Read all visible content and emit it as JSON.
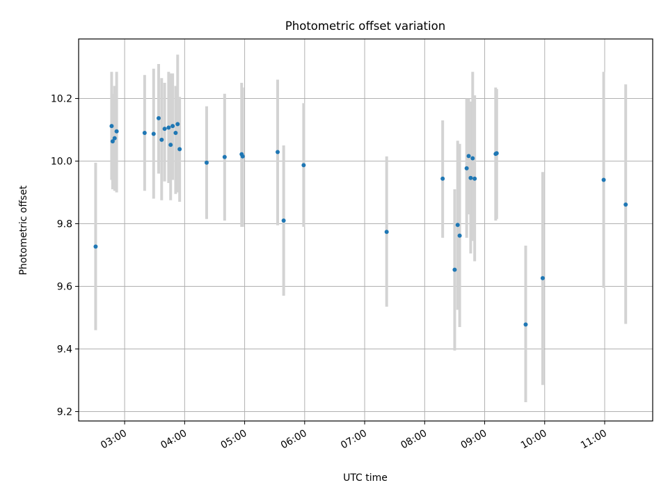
{
  "chart_data": {
    "type": "scatter",
    "title": "Photometric offset variation",
    "xlabel": "UTC time",
    "ylabel": "Photometric offset",
    "x_unit": "UTC time (HH:MM)",
    "xlim": [
      "02:14",
      "11:48"
    ],
    "ylim": [
      9.17,
      10.39
    ],
    "x_ticks": [
      "03:00",
      "04:00",
      "05:00",
      "06:00",
      "07:00",
      "08:00",
      "09:00",
      "10:00",
      "11:00"
    ],
    "y_ticks": [
      9.2,
      9.4,
      9.6,
      9.8,
      10.0,
      10.2
    ],
    "y_tick_labels": [
      "9.2",
      "9.4",
      "9.6",
      "9.8",
      "10.0",
      "10.2"
    ],
    "grid": true,
    "x_tick_rotation": "30 degrees, right-aligned",
    "colors": {
      "points": "#1f77b4",
      "error_bars": "#d3d3d3",
      "grid": "#b0b0b0"
    },
    "series": [
      {
        "points": [
          {
            "x": "02:31",
            "y": 9.727,
            "ylo": 9.46,
            "yhi": 9.995
          },
          {
            "x": "02:47",
            "y": 10.112,
            "ylo": 9.94,
            "yhi": 10.285
          },
          {
            "x": "02:48",
            "y": 10.063,
            "ylo": 9.91,
            "yhi": 10.215
          },
          {
            "x": "02:50",
            "y": 10.073,
            "ylo": 9.905,
            "yhi": 10.24
          },
          {
            "x": "02:52",
            "y": 10.095,
            "ylo": 9.9,
            "yhi": 10.285
          },
          {
            "x": "03:20",
            "y": 10.09,
            "ylo": 9.905,
            "yhi": 10.275
          },
          {
            "x": "03:29",
            "y": 10.087,
            "ylo": 9.88,
            "yhi": 10.295
          },
          {
            "x": "03:34",
            "y": 10.137,
            "ylo": 9.96,
            "yhi": 10.31
          },
          {
            "x": "03:37",
            "y": 10.068,
            "ylo": 9.875,
            "yhi": 10.265
          },
          {
            "x": "03:40",
            "y": 10.103,
            "ylo": 9.935,
            "yhi": 10.25
          },
          {
            "x": "03:44",
            "y": 10.107,
            "ylo": 9.93,
            "yhi": 10.285
          },
          {
            "x": "03:46",
            "y": 10.052,
            "ylo": 9.875,
            "yhi": 10.28
          },
          {
            "x": "03:48",
            "y": 10.112,
            "ylo": 9.94,
            "yhi": 10.28
          },
          {
            "x": "03:51",
            "y": 10.09,
            "ylo": 9.895,
            "yhi": 10.24
          },
          {
            "x": "03:53",
            "y": 10.118,
            "ylo": 9.9,
            "yhi": 10.34
          },
          {
            "x": "03:55",
            "y": 10.038,
            "ylo": 9.87,
            "yhi": 10.205
          },
          {
            "x": "04:22",
            "y": 9.995,
            "ylo": 9.815,
            "yhi": 10.175
          },
          {
            "x": "04:40",
            "y": 10.013,
            "ylo": 9.81,
            "yhi": 10.215
          },
          {
            "x": "04:57",
            "y": 10.022,
            "ylo": 9.79,
            "yhi": 10.25
          },
          {
            "x": "04:58",
            "y": 10.015,
            "ylo": 9.79,
            "yhi": 10.235
          },
          {
            "x": "05:33",
            "y": 10.029,
            "ylo": 9.795,
            "yhi": 10.26
          },
          {
            "x": "05:39",
            "y": 9.81,
            "ylo": 9.57,
            "yhi": 10.05
          },
          {
            "x": "05:59",
            "y": 9.987,
            "ylo": 9.79,
            "yhi": 10.185
          },
          {
            "x": "07:22",
            "y": 9.774,
            "ylo": 9.535,
            "yhi": 10.015
          },
          {
            "x": "08:18",
            "y": 9.944,
            "ylo": 9.755,
            "yhi": 10.13
          },
          {
            "x": "08:30",
            "y": 9.653,
            "ylo": 9.395,
            "yhi": 9.91
          },
          {
            "x": "08:33",
            "y": 9.796,
            "ylo": 9.525,
            "yhi": 10.065
          },
          {
            "x": "08:35",
            "y": 9.762,
            "ylo": 9.47,
            "yhi": 10.055
          },
          {
            "x": "08:42",
            "y": 9.977,
            "ylo": 9.755,
            "yhi": 10.2
          },
          {
            "x": "08:44",
            "y": 10.016,
            "ylo": 9.83,
            "yhi": 10.2
          },
          {
            "x": "08:46",
            "y": 9.946,
            "ylo": 9.705,
            "yhi": 10.19
          },
          {
            "x": "08:48",
            "y": 10.009,
            "ylo": 9.745,
            "yhi": 10.285
          },
          {
            "x": "08:50",
            "y": 9.944,
            "ylo": 9.68,
            "yhi": 10.21
          },
          {
            "x": "09:11",
            "y": 10.023,
            "ylo": 9.81,
            "yhi": 10.235
          },
          {
            "x": "09:12",
            "y": 10.025,
            "ylo": 9.815,
            "yhi": 10.23
          },
          {
            "x": "09:41",
            "y": 9.478,
            "ylo": 9.23,
            "yhi": 9.73
          },
          {
            "x": "09:58",
            "y": 9.626,
            "ylo": 9.285,
            "yhi": 9.965
          },
          {
            "x": "10:59",
            "y": 9.94,
            "ylo": 9.595,
            "yhi": 10.285
          },
          {
            "x": "11:21",
            "y": 9.861,
            "ylo": 9.48,
            "yhi": 10.245
          }
        ]
      }
    ]
  }
}
